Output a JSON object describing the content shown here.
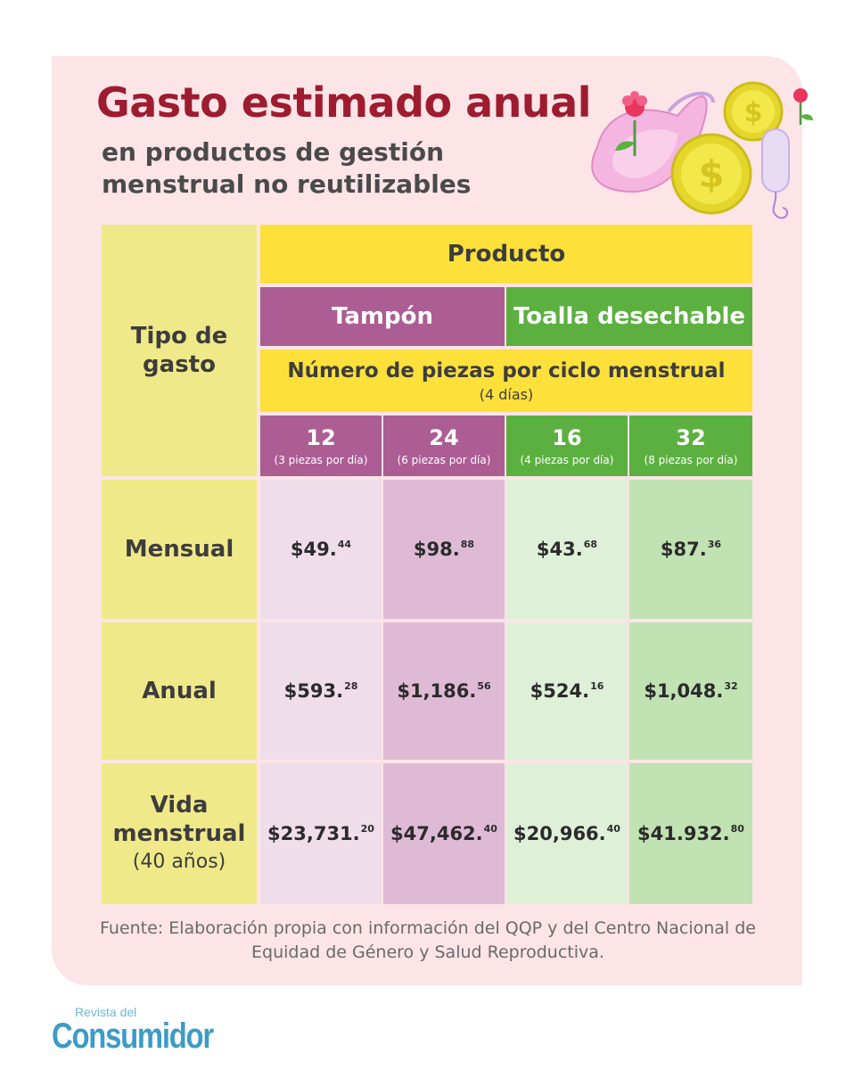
{
  "header": {
    "title": "Gasto estimado anual",
    "subtitle": "en productos de gestión menstrual no reutilizables"
  },
  "table": {
    "side_header": "Tipo de gasto",
    "product_header": "Producto",
    "products": [
      "Tampón",
      "Toalla desechable"
    ],
    "pieces_header": "Número de piezas por ciclo menstrual",
    "pieces_sub": "(4 días)",
    "columns": [
      {
        "number": "12",
        "detail": "(3 piezas por día)"
      },
      {
        "number": "24",
        "detail": "(6 piezas por día)"
      },
      {
        "number": "16",
        "detail": "(4 piezas por día)"
      },
      {
        "number": "32",
        "detail": "(8 piezas por día)"
      }
    ],
    "rows": [
      {
        "label": "Mensual",
        "label_sub": "",
        "values": [
          {
            "main": "$49.",
            "cents": "44"
          },
          {
            "main": "$98.",
            "cents": "88"
          },
          {
            "main": "$43.",
            "cents": "68"
          },
          {
            "main": "$87.",
            "cents": "36"
          }
        ]
      },
      {
        "label": "Anual",
        "label_sub": "",
        "values": [
          {
            "main": "$593.",
            "cents": "28"
          },
          {
            "main": "$1,186.",
            "cents": "56"
          },
          {
            "main": "$524.",
            "cents": "16"
          },
          {
            "main": "$1,048.",
            "cents": "32"
          }
        ]
      },
      {
        "label": "Vida menstrual",
        "label_sub": "(40 años)",
        "values": [
          {
            "main": "$23,731.",
            "cents": "20"
          },
          {
            "main": "$47,462.",
            "cents": "40"
          },
          {
            "main": "$20,966.",
            "cents": "40"
          },
          {
            "main": "$41.932.",
            "cents": "80"
          }
        ]
      }
    ]
  },
  "source": "Fuente: Elaboración propia con información del QQP y del Centro Nacional de Equidad de Género y Salud Reproductiva.",
  "logo": {
    "top": "Revista del",
    "main": "Consumidor"
  },
  "colors": {
    "title": "#9e1c2f",
    "yellow": "#fde03a",
    "side_yellow": "#f0e989",
    "purple": "#ab5d94",
    "green": "#5cb040",
    "card": "#fce4e7"
  },
  "icons": [
    "flower-icon",
    "sanitary-pad-icon",
    "coin-icon",
    "tampon-icon"
  ]
}
